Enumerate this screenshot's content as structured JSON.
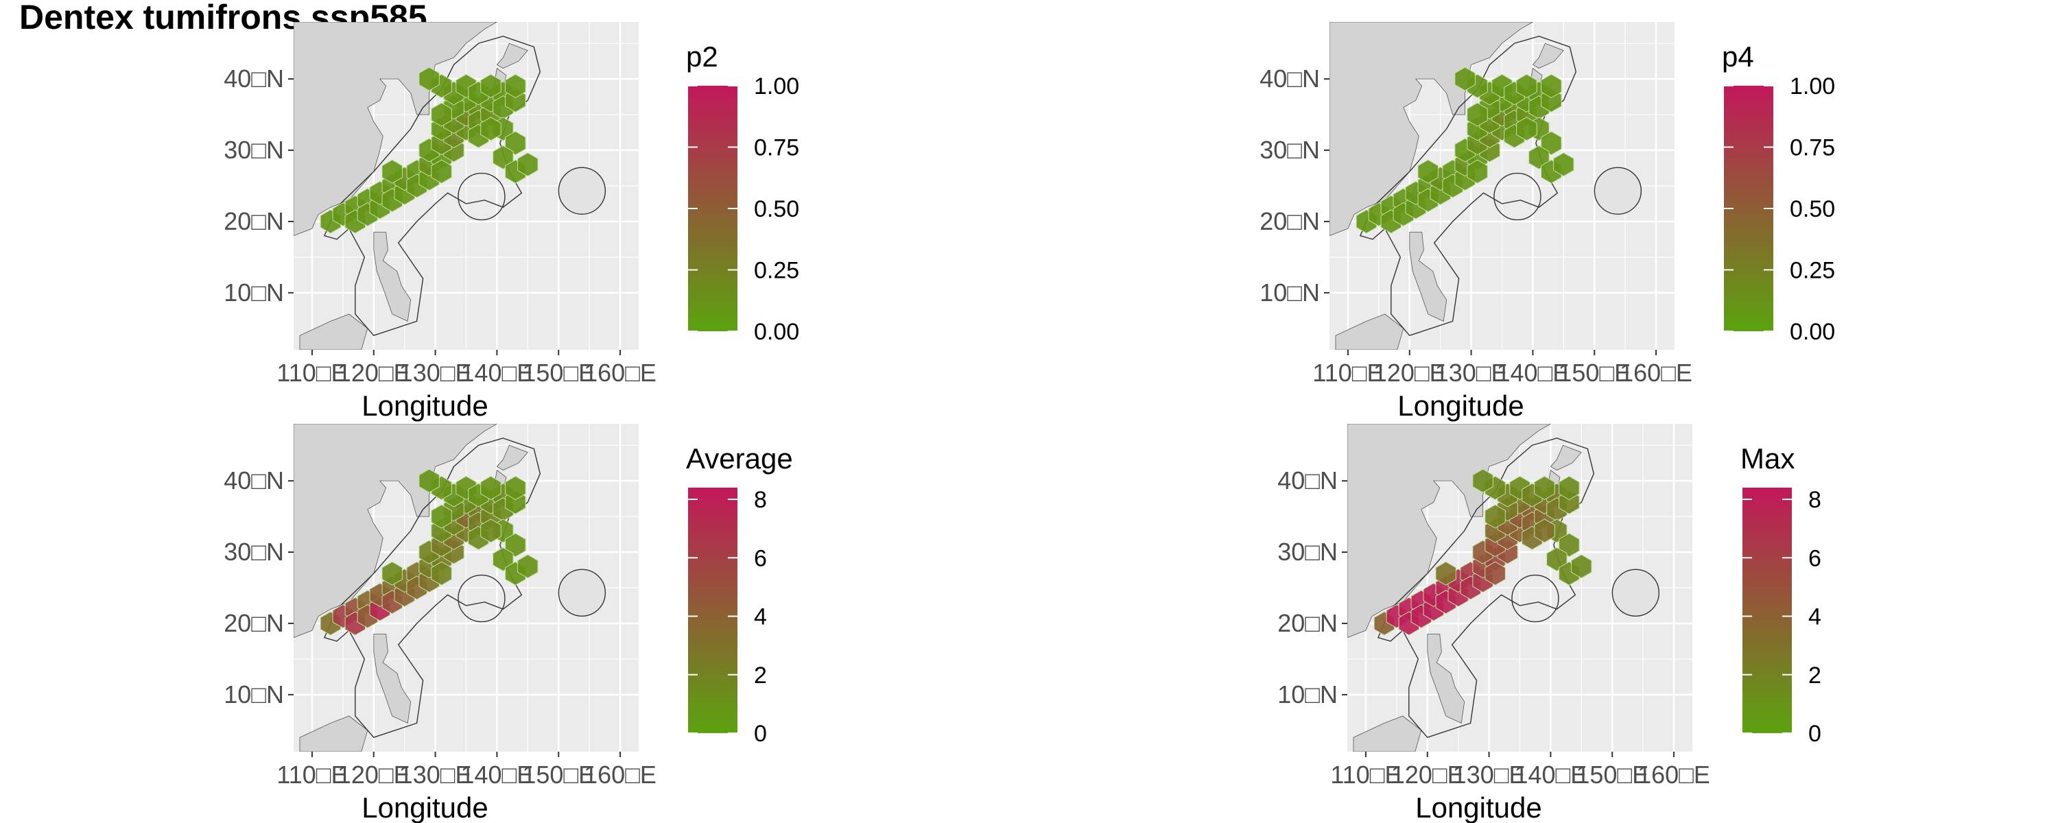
{
  "title": "Dentex tumifrons ssp585",
  "colors": {
    "low": "#5ba30f",
    "high": "#c2185b",
    "panel_bg": "#ebebeb",
    "land": "#d3d3d3",
    "grid": "#ffffff"
  },
  "chart_data": [
    {
      "type": "heatmap",
      "legend_title": "p2",
      "xlabel": "Longitude",
      "ylabel": "",
      "x_ticks": [
        "110□E",
        "120□E",
        "130□E",
        "140□E",
        "150□E",
        "160□E"
      ],
      "y_ticks": [
        "10□N",
        "20□N",
        "30□N",
        "40□N"
      ],
      "xlim": [
        107,
        163
      ],
      "ylim": [
        2,
        48
      ],
      "legend_ticks": [
        "0.00",
        "0.25",
        "0.50",
        "0.75",
        "1.00"
      ],
      "legend_range": [
        0,
        1
      ],
      "cells": [
        [
          113,
          20,
          0.1
        ],
        [
          115,
          21,
          0.1
        ],
        [
          117,
          22,
          0.1
        ],
        [
          119,
          23,
          0.1
        ],
        [
          117,
          20,
          0.1
        ],
        [
          119,
          21,
          0.1
        ],
        [
          121,
          22,
          0.1
        ],
        [
          121,
          24,
          0.1
        ],
        [
          123,
          25,
          0.1
        ],
        [
          123,
          23,
          0.1
        ],
        [
          125,
          24,
          0.1
        ],
        [
          125,
          26,
          0.15
        ],
        [
          127,
          27,
          0.1
        ],
        [
          127,
          25,
          0.1
        ],
        [
          129,
          26,
          0.1
        ],
        [
          129,
          28,
          0.15
        ],
        [
          131,
          29,
          0.1
        ],
        [
          131,
          27,
          0.1
        ],
        [
          133,
          30,
          0.15
        ],
        [
          129,
          30,
          0.1
        ],
        [
          131,
          31,
          0.15
        ],
        [
          133,
          32,
          0.2
        ],
        [
          135,
          33,
          0.15
        ],
        [
          131,
          33,
          0.1
        ],
        [
          133,
          34,
          0.15
        ],
        [
          135,
          35,
          0.2
        ],
        [
          137,
          36,
          0.15
        ],
        [
          137,
          34,
          0.15
        ],
        [
          139,
          35,
          0.15
        ],
        [
          139,
          37,
          0.1
        ],
        [
          141,
          38,
          0.1
        ],
        [
          141,
          36,
          0.1
        ],
        [
          143,
          37,
          0.1
        ],
        [
          135,
          37,
          0.1
        ],
        [
          133,
          36,
          0.1
        ],
        [
          131,
          35,
          0.1
        ],
        [
          133,
          38,
          0.1
        ],
        [
          135,
          39,
          0.1
        ],
        [
          137,
          38,
          0.1
        ],
        [
          139,
          39,
          0.1
        ],
        [
          131,
          39,
          0.1
        ],
        [
          129,
          40,
          0.1
        ],
        [
          143,
          39,
          0.1
        ],
        [
          141,
          33,
          0.1
        ],
        [
          143,
          31,
          0.1
        ],
        [
          141,
          29,
          0.1
        ],
        [
          143,
          27,
          0.1
        ],
        [
          145,
          28,
          0.1
        ],
        [
          123,
          27,
          0.1
        ],
        [
          137,
          32,
          0.1
        ],
        [
          139,
          33,
          0.1
        ]
      ]
    },
    {
      "type": "heatmap",
      "legend_title": "p4",
      "xlabel": "Longitude",
      "ylabel": "",
      "x_ticks": [
        "110□E",
        "120□E",
        "130□E",
        "140□E",
        "150□E",
        "160□E"
      ],
      "y_ticks": [
        "10□N",
        "20□N",
        "30□N",
        "40□N"
      ],
      "xlim": [
        107,
        163
      ],
      "ylim": [
        2,
        48
      ],
      "legend_ticks": [
        "0.00",
        "0.25",
        "0.50",
        "0.75",
        "1.00"
      ],
      "legend_range": [
        0,
        1
      ],
      "cells": [
        [
          113,
          20,
          0.1
        ],
        [
          115,
          21,
          0.1
        ],
        [
          117,
          22,
          0.1
        ],
        [
          119,
          23,
          0.1
        ],
        [
          117,
          20,
          0.1
        ],
        [
          119,
          21,
          0.1
        ],
        [
          121,
          22,
          0.1
        ],
        [
          121,
          24,
          0.1
        ],
        [
          123,
          25,
          0.1
        ],
        [
          123,
          23,
          0.1
        ],
        [
          125,
          24,
          0.1
        ],
        [
          125,
          26,
          0.15
        ],
        [
          127,
          27,
          0.1
        ],
        [
          127,
          25,
          0.1
        ],
        [
          129,
          26,
          0.1
        ],
        [
          129,
          28,
          0.15
        ],
        [
          131,
          29,
          0.1
        ],
        [
          131,
          27,
          0.1
        ],
        [
          133,
          30,
          0.15
        ],
        [
          129,
          30,
          0.1
        ],
        [
          131,
          31,
          0.15
        ],
        [
          133,
          32,
          0.2
        ],
        [
          135,
          33,
          0.15
        ],
        [
          131,
          33,
          0.1
        ],
        [
          133,
          34,
          0.15
        ],
        [
          135,
          35,
          0.2
        ],
        [
          137,
          36,
          0.15
        ],
        [
          137,
          34,
          0.15
        ],
        [
          139,
          35,
          0.15
        ],
        [
          139,
          37,
          0.1
        ],
        [
          141,
          38,
          0.1
        ],
        [
          141,
          36,
          0.1
        ],
        [
          143,
          37,
          0.1
        ],
        [
          135,
          37,
          0.1
        ],
        [
          133,
          36,
          0.1
        ],
        [
          131,
          35,
          0.1
        ],
        [
          133,
          38,
          0.1
        ],
        [
          135,
          39,
          0.1
        ],
        [
          137,
          38,
          0.1
        ],
        [
          139,
          39,
          0.1
        ],
        [
          131,
          39,
          0.1
        ],
        [
          129,
          40,
          0.1
        ],
        [
          143,
          39,
          0.1
        ],
        [
          141,
          33,
          0.1
        ],
        [
          143,
          31,
          0.1
        ],
        [
          141,
          29,
          0.1
        ],
        [
          143,
          27,
          0.1
        ],
        [
          145,
          28,
          0.1
        ],
        [
          123,
          27,
          0.1
        ],
        [
          137,
          32,
          0.1
        ],
        [
          139,
          33,
          0.1
        ]
      ]
    },
    {
      "type": "heatmap",
      "legend_title": "Average",
      "xlabel": "Longitude",
      "ylabel": "",
      "x_ticks": [
        "110□E",
        "120□E",
        "130□E",
        "140□E",
        "150□E",
        "160□E"
      ],
      "y_ticks": [
        "10□N",
        "20□N",
        "30□N",
        "40□N"
      ],
      "xlim": [
        107,
        163
      ],
      "ylim": [
        2,
        48
      ],
      "legend_ticks": [
        "0",
        "2",
        "4",
        "6",
        "8"
      ],
      "legend_range": [
        0,
        8.4
      ],
      "cells": [
        [
          113,
          20,
          3.0
        ],
        [
          115,
          21,
          6.0
        ],
        [
          117,
          22,
          5.0
        ],
        [
          119,
          23,
          3.5
        ],
        [
          117,
          20,
          6.5
        ],
        [
          119,
          21,
          4.5
        ],
        [
          121,
          22,
          7.5
        ],
        [
          121,
          24,
          4.0
        ],
        [
          123,
          25,
          3.5
        ],
        [
          123,
          23,
          5.0
        ],
        [
          125,
          24,
          4.0
        ],
        [
          125,
          26,
          3.0
        ],
        [
          127,
          27,
          3.0
        ],
        [
          127,
          25,
          3.5
        ],
        [
          129,
          26,
          3.0
        ],
        [
          129,
          28,
          2.5
        ],
        [
          131,
          29,
          2.5
        ],
        [
          131,
          27,
          2.0
        ],
        [
          133,
          30,
          2.5
        ],
        [
          129,
          30,
          2.0
        ],
        [
          131,
          31,
          2.5
        ],
        [
          133,
          32,
          3.0
        ],
        [
          135,
          33,
          2.5
        ],
        [
          131,
          33,
          1.5
        ],
        [
          133,
          34,
          2.0
        ],
        [
          135,
          35,
          3.5
        ],
        [
          137,
          36,
          2.5
        ],
        [
          137,
          34,
          2.5
        ],
        [
          139,
          35,
          2.0
        ],
        [
          139,
          37,
          1.5
        ],
        [
          141,
          38,
          1.5
        ],
        [
          141,
          36,
          1.5
        ],
        [
          143,
          37,
          1.0
        ],
        [
          135,
          37,
          1.5
        ],
        [
          133,
          36,
          1.5
        ],
        [
          131,
          35,
          1.0
        ],
        [
          133,
          38,
          1.0
        ],
        [
          135,
          39,
          1.0
        ],
        [
          137,
          38,
          1.0
        ],
        [
          139,
          39,
          1.0
        ],
        [
          131,
          39,
          1.0
        ],
        [
          129,
          40,
          1.0
        ],
        [
          143,
          39,
          1.0
        ],
        [
          141,
          33,
          1.0
        ],
        [
          143,
          31,
          1.0
        ],
        [
          141,
          29,
          1.0
        ],
        [
          143,
          27,
          1.0
        ],
        [
          145,
          28,
          1.0
        ],
        [
          123,
          27,
          1.5
        ],
        [
          137,
          32,
          1.5
        ],
        [
          139,
          33,
          1.5
        ]
      ]
    },
    {
      "type": "heatmap",
      "legend_title": "Max",
      "xlabel": "Longitude",
      "ylabel": "",
      "x_ticks": [
        "110□E",
        "120□E",
        "130□E",
        "140□E",
        "150□E",
        "160□E"
      ],
      "y_ticks": [
        "10□N",
        "20□N",
        "30□N",
        "40□N"
      ],
      "xlim": [
        107,
        163
      ],
      "ylim": [
        2,
        48
      ],
      "legend_ticks": [
        "0",
        "2",
        "4",
        "6",
        "8"
      ],
      "legend_range": [
        0,
        8.4
      ],
      "cells": [
        [
          113,
          20,
          4.0
        ],
        [
          115,
          21,
          8.0
        ],
        [
          117,
          22,
          8.0
        ],
        [
          119,
          23,
          8.0
        ],
        [
          117,
          20,
          8.0
        ],
        [
          119,
          21,
          8.0
        ],
        [
          121,
          22,
          8.0
        ],
        [
          121,
          24,
          8.0
        ],
        [
          123,
          25,
          7.5
        ],
        [
          123,
          23,
          8.0
        ],
        [
          125,
          24,
          7.5
        ],
        [
          125,
          26,
          7.0
        ],
        [
          127,
          27,
          6.5
        ],
        [
          127,
          25,
          7.0
        ],
        [
          129,
          26,
          6.5
        ],
        [
          129,
          28,
          5.5
        ],
        [
          131,
          29,
          5.5
        ],
        [
          131,
          27,
          5.0
        ],
        [
          133,
          30,
          5.0
        ],
        [
          129,
          30,
          4.5
        ],
        [
          131,
          31,
          5.0
        ],
        [
          133,
          32,
          4.5
        ],
        [
          135,
          33,
          4.0
        ],
        [
          131,
          33,
          3.5
        ],
        [
          133,
          34,
          4.0
        ],
        [
          135,
          35,
          4.5
        ],
        [
          137,
          36,
          4.0
        ],
        [
          137,
          34,
          4.0
        ],
        [
          139,
          35,
          3.5
        ],
        [
          139,
          37,
          3.0
        ],
        [
          141,
          38,
          2.5
        ],
        [
          141,
          36,
          2.5
        ],
        [
          143,
          37,
          2.0
        ],
        [
          135,
          37,
          3.0
        ],
        [
          133,
          36,
          2.5
        ],
        [
          131,
          35,
          2.0
        ],
        [
          133,
          38,
          2.0
        ],
        [
          135,
          39,
          1.5
        ],
        [
          137,
          38,
          2.0
        ],
        [
          139,
          39,
          1.5
        ],
        [
          131,
          39,
          1.5
        ],
        [
          129,
          40,
          1.5
        ],
        [
          143,
          39,
          1.5
        ],
        [
          141,
          33,
          2.0
        ],
        [
          143,
          31,
          1.5
        ],
        [
          141,
          29,
          1.5
        ],
        [
          143,
          27,
          1.5
        ],
        [
          145,
          28,
          1.5
        ],
        [
          123,
          27,
          3.0
        ],
        [
          137,
          32,
          3.0
        ],
        [
          139,
          33,
          3.0
        ]
      ]
    }
  ]
}
